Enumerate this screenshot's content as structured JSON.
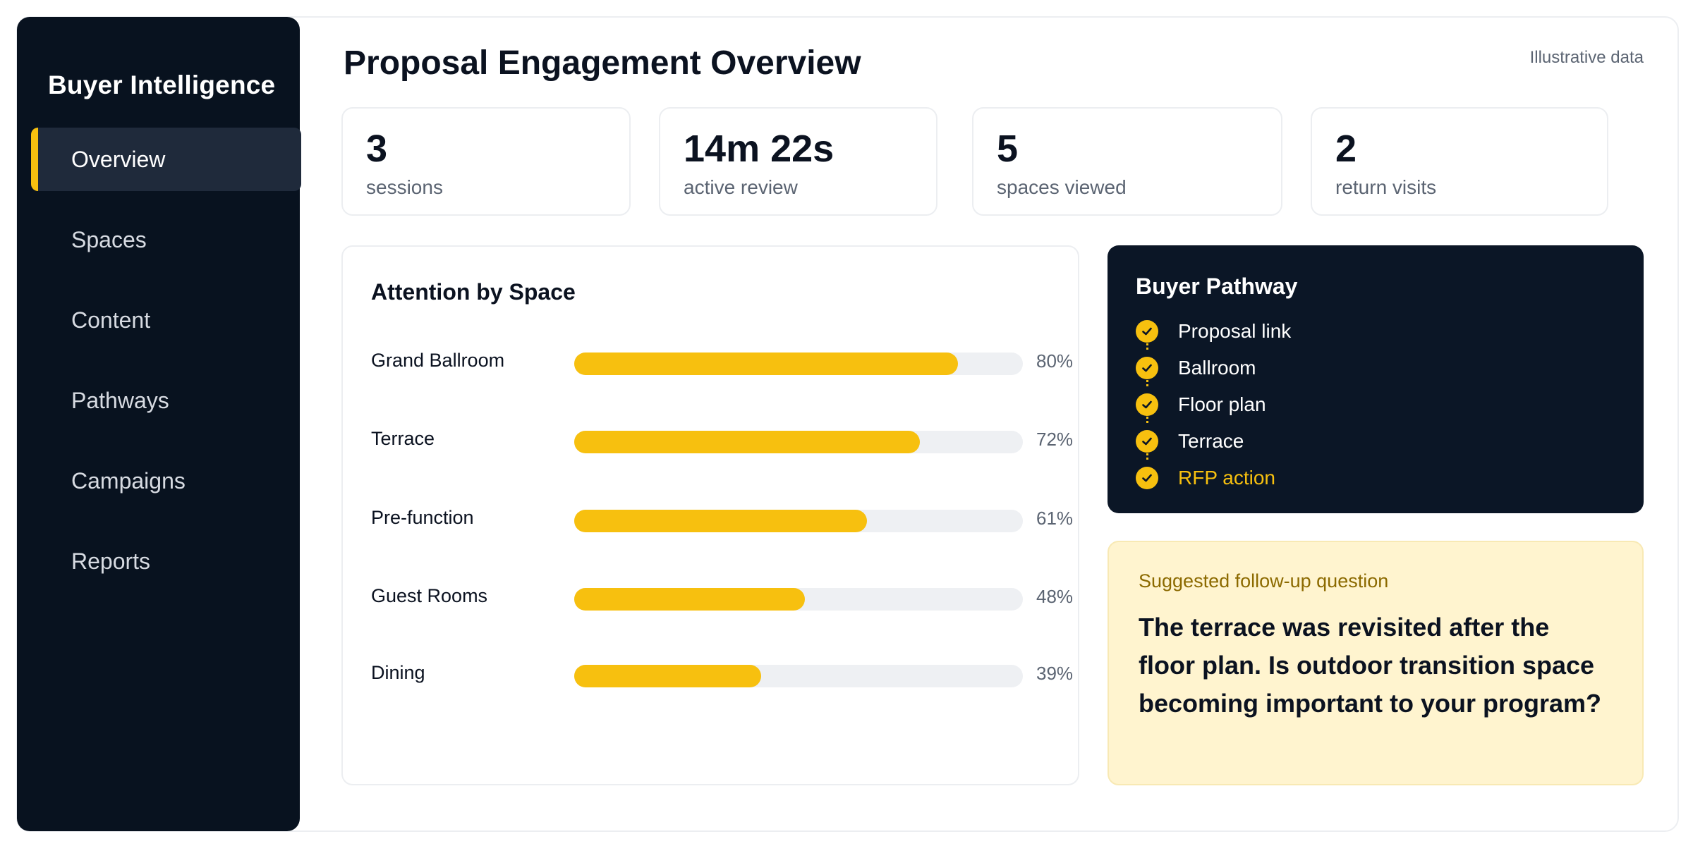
{
  "sidebar": {
    "brand": "Buyer Intelligence",
    "items": [
      {
        "label": "Overview",
        "active": true
      },
      {
        "label": "Spaces",
        "active": false
      },
      {
        "label": "Content",
        "active": false
      },
      {
        "label": "Pathways",
        "active": false
      },
      {
        "label": "Campaigns",
        "active": false
      },
      {
        "label": "Reports",
        "active": false
      }
    ]
  },
  "header": {
    "title": "Proposal Engagement Overview",
    "note": "Illustrative data"
  },
  "kpis": [
    {
      "value": "3",
      "label": "sessions"
    },
    {
      "value": "14m 22s",
      "label": "active review"
    },
    {
      "value": "5",
      "label": "spaces viewed"
    },
    {
      "value": "2",
      "label": "return visits"
    }
  ],
  "attention": {
    "title": "Attention by Space",
    "rows": [
      {
        "name": "Grand Ballroom",
        "percent": 80,
        "label": "80%"
      },
      {
        "name": "Terrace",
        "percent": 72,
        "label": "72%"
      },
      {
        "name": "Pre-function",
        "percent": 61,
        "label": "61%"
      },
      {
        "name": "Guest Rooms",
        "percent": 48,
        "label": "48%"
      },
      {
        "name": "Dining",
        "percent": 39,
        "label": "39%"
      }
    ]
  },
  "pathway": {
    "title": "Buyer Pathway",
    "steps": [
      {
        "label": "Proposal link",
        "highlight": false
      },
      {
        "label": "Ballroom",
        "highlight": false
      },
      {
        "label": "Floor plan",
        "highlight": false
      },
      {
        "label": "Terrace",
        "highlight": false
      },
      {
        "label": "RFP action",
        "highlight": true
      }
    ]
  },
  "suggestion": {
    "label": "Suggested follow-up question",
    "text": "The terrace was revisited after the floor plan. Is outdoor transition space becoming important to your program?"
  },
  "colors": {
    "accent": "#f7c00f",
    "sidebar_bg": "#08121f",
    "pathway_bg": "#0b1626",
    "suggestion_bg": "#fff4cf"
  }
}
